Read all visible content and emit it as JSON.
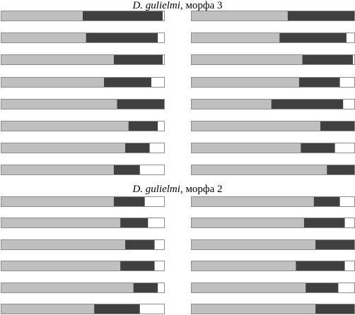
{
  "panels": [
    {
      "title_species": "D. gulielmi",
      "title_rest": ", морфа 3"
    },
    {
      "title_species": "D. gulielmi",
      "title_rest": ", морфа 2"
    }
  ],
  "colors": {
    "segment1": "#bfbfbf",
    "segment2": "#404040",
    "segment3": "#ffffff",
    "frame": "#8c8c8c"
  },
  "chart_data": {
    "type": "bar",
    "orientation": "horizontal",
    "stacked": true,
    "xlim": [
      0,
      1
    ],
    "legend": "none",
    "grid": false,
    "panels": [
      {
        "title": "D. gulielmi, морфа 3",
        "columns": [
          {
            "bars": [
              [
                0.5,
                0.49,
                0.01
              ],
              [
                0.52,
                0.44,
                0.04
              ],
              [
                0.69,
                0.3,
                0.01
              ],
              [
                0.63,
                0.29,
                0.08
              ],
              [
                0.71,
                0.29,
                0.0
              ],
              [
                0.78,
                0.18,
                0.04
              ],
              [
                0.76,
                0.15,
                0.09
              ],
              [
                0.69,
                0.16,
                0.15
              ]
            ]
          },
          {
            "bars": [
              [
                0.59,
                0.41,
                0.0
              ],
              [
                0.54,
                0.41,
                0.05
              ],
              [
                0.68,
                0.31,
                0.01
              ],
              [
                0.66,
                0.25,
                0.09
              ],
              [
                0.49,
                0.44,
                0.07
              ],
              [
                0.79,
                0.21,
                0.0
              ],
              [
                0.67,
                0.21,
                0.12
              ],
              [
                0.83,
                0.17,
                0.0
              ]
            ]
          }
        ]
      },
      {
        "title": "D. gulielmi, морфа 2",
        "columns": [
          {
            "bars": [
              [
                0.69,
                0.19,
                0.12
              ],
              [
                0.73,
                0.17,
                0.1
              ],
              [
                0.76,
                0.18,
                0.06
              ],
              [
                0.73,
                0.21,
                0.06
              ],
              [
                0.81,
                0.15,
                0.04
              ],
              [
                0.57,
                0.28,
                0.15
              ]
            ]
          },
          {
            "bars": [
              [
                0.75,
                0.16,
                0.09
              ],
              [
                0.69,
                0.25,
                0.06
              ],
              [
                0.76,
                0.24,
                0.0
              ],
              [
                0.64,
                0.3,
                0.06
              ],
              [
                0.7,
                0.2,
                0.1
              ],
              [
                0.76,
                0.24,
                0.0
              ]
            ]
          }
        ]
      }
    ]
  }
}
